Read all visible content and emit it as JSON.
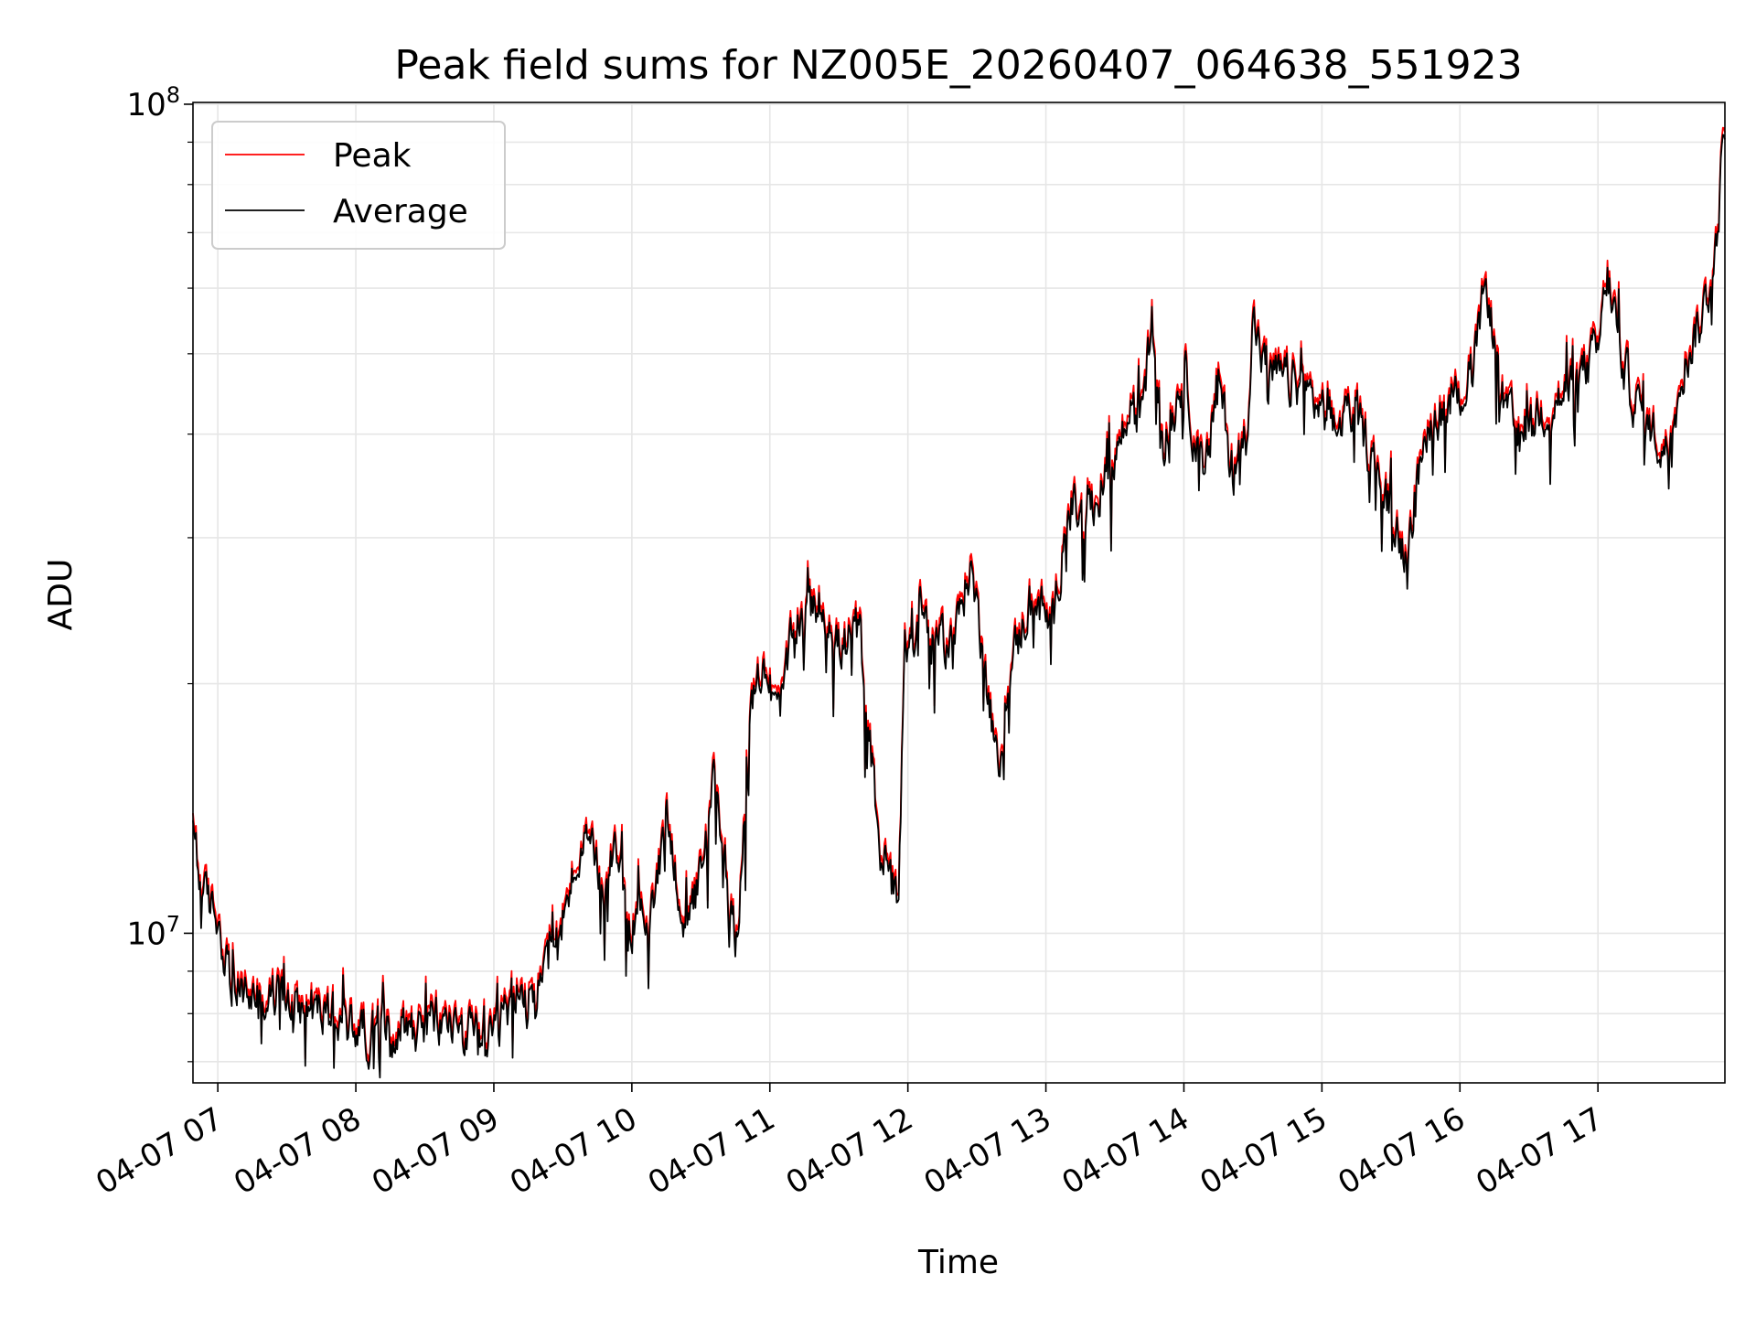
{
  "chart_data": {
    "type": "line",
    "title": "Peak field sums for NZ005E_20260407_064638_551923",
    "xlabel": "Time",
    "ylabel": "ADU",
    "yscale": "log",
    "ylim": [
      6600000,
      100500000
    ],
    "xlim": [
      6.82,
      17.92
    ],
    "x_unit": "hour of 2026-04-07",
    "grid": true,
    "legend_position": "top-left",
    "x_ticks": [
      {
        "value": 7,
        "label": "04-07 07"
      },
      {
        "value": 8,
        "label": "04-07 08"
      },
      {
        "value": 9,
        "label": "04-07 09"
      },
      {
        "value": 10,
        "label": "04-07 10"
      },
      {
        "value": 11,
        "label": "04-07 11"
      },
      {
        "value": 12,
        "label": "04-07 12"
      },
      {
        "value": 13,
        "label": "04-07 13"
      },
      {
        "value": 14,
        "label": "04-07 14"
      },
      {
        "value": 15,
        "label": "04-07 15"
      },
      {
        "value": 16,
        "label": "04-07 16"
      },
      {
        "value": 17,
        "label": "04-07 17"
      }
    ],
    "y_ticks": [
      {
        "value": 10000000,
        "base": "10",
        "exp": "7"
      },
      {
        "value": 100000000,
        "base": "10",
        "exp": "8"
      }
    ],
    "y_minor_ticks": [
      7000000,
      8000000,
      9000000,
      20000000,
      30000000,
      40000000,
      50000000,
      60000000,
      70000000,
      80000000,
      90000000
    ],
    "series": [
      {
        "name": "Peak",
        "color": "#ff0000",
        "offset_factor": 1.02
      },
      {
        "name": "Average",
        "color": "#000000",
        "offset_factor": 1.0
      }
    ],
    "anchor_x": [
      6.82,
      6.9,
      7.0,
      7.1,
      7.3,
      7.5,
      7.7,
      7.9,
      8.1,
      8.3,
      8.5,
      8.7,
      8.9,
      9.0,
      9.15,
      9.3,
      9.5,
      9.65,
      9.8,
      9.88,
      9.97,
      10.05,
      10.15,
      10.25,
      10.4,
      10.55,
      10.6,
      10.75,
      10.87,
      10.95,
      11.05,
      11.2,
      11.35,
      11.5,
      11.65,
      11.8,
      11.93,
      11.98,
      12.1,
      12.2,
      12.35,
      12.45,
      12.55,
      12.65,
      12.72,
      12.9,
      13.05,
      13.15,
      13.3,
      13.4,
      13.55,
      13.7,
      13.77,
      13.85,
      14.0,
      14.15,
      14.25,
      14.35,
      14.45,
      14.5,
      14.6,
      14.8,
      15.0,
      15.1,
      15.2,
      15.4,
      15.6,
      15.7,
      15.8,
      16.0,
      16.1,
      16.15,
      16.2,
      16.3,
      16.4,
      16.6,
      16.8,
      17.0,
      17.07,
      17.2,
      17.35,
      17.5,
      17.6,
      17.75,
      17.85,
      17.92
    ],
    "anchor_y_avg": [
      13000000,
      11000000,
      10500000,
      8600000,
      8300000,
      8400000,
      8100000,
      7800000,
      7600000,
      7700000,
      7800000,
      7800000,
      7400000,
      7300000,
      8500000,
      8100000,
      10500000,
      13000000,
      11000000,
      13500000,
      9800000,
      11000000,
      10500000,
      14000000,
      9800000,
      13000000,
      15500000,
      9800000,
      18000000,
      22000000,
      18000000,
      24000000,
      25000000,
      22000000,
      23000000,
      12500000,
      11300000,
      22000000,
      24000000,
      22000000,
      23000000,
      28000000,
      21500000,
      15500000,
      20000000,
      26000000,
      23000000,
      33000000,
      31000000,
      34000000,
      40000000,
      43000000,
      55000000,
      38000000,
      48000000,
      34000000,
      47000000,
      36000000,
      40000000,
      55000000,
      47000000,
      46000000,
      43000000,
      40000000,
      44000000,
      36000000,
      29000000,
      36000000,
      42000000,
      45000000,
      47000000,
      56000000,
      60000000,
      44000000,
      40000000,
      43000000,
      45000000,
      50000000,
      62000000,
      47000000,
      41000000,
      38000000,
      48000000,
      55000000,
      65000000,
      96000000
    ]
  },
  "legend": {
    "items": [
      {
        "label": "Peak"
      },
      {
        "label": "Average"
      }
    ]
  }
}
